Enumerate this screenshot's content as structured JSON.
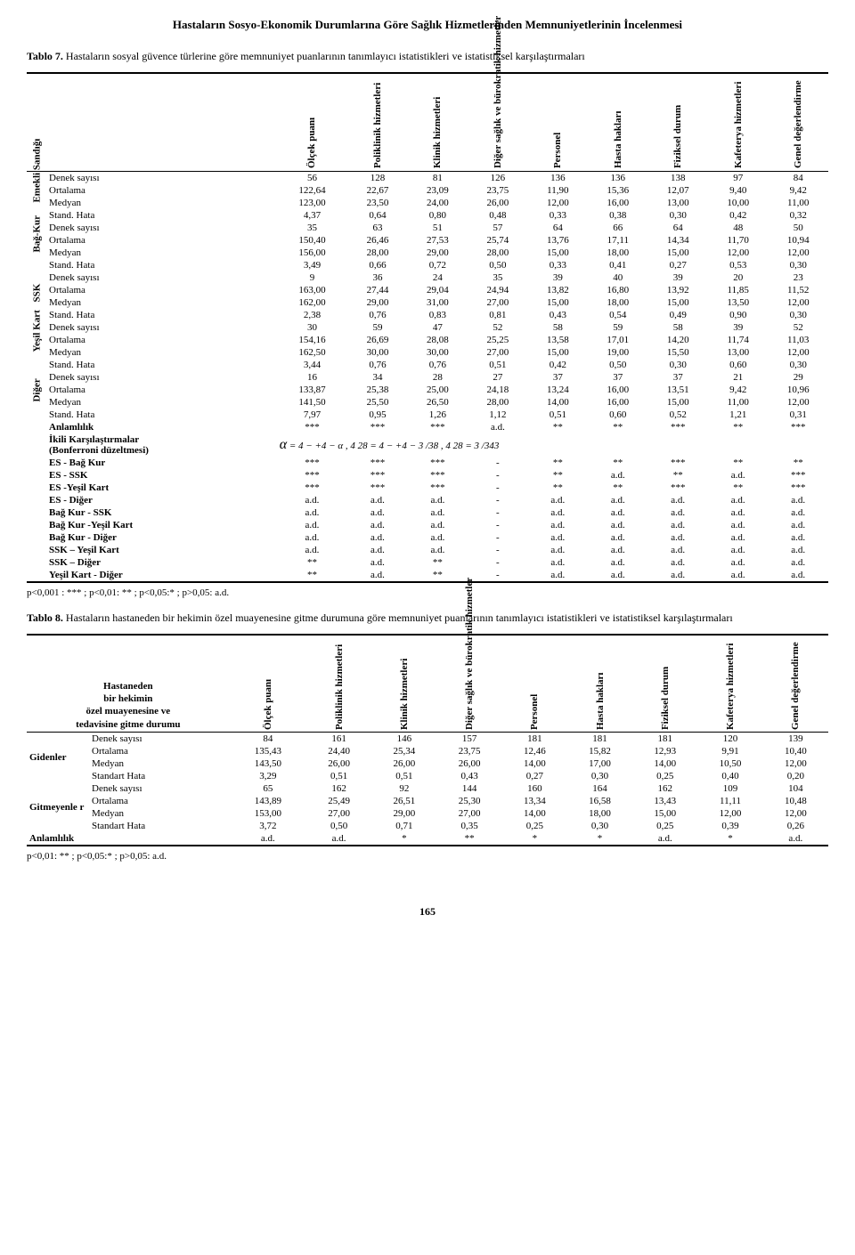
{
  "page_header": "Hastaların Sosyo-Ekonomik Durumlarına Göre Sağlık Hizmetlerinden Memnuniyetlerinin İncelenmesi",
  "ornament": "",
  "table7": {
    "label": "Tablo 7.",
    "caption": "Hastaların sosyal güvence türlerine göre memnuniyet puanlarının tanımlayıcı istatistikleri ve istatistiksel karşılaştırmaları",
    "col_headers": [
      "Ölçek puanı",
      "Poliklinik hizmetleri",
      "Klinik hizmetleri",
      "Diğer sağlık ve bürokratik hizmetler",
      "Personel",
      "Hasta hakları",
      "Fiziksel durum",
      "Kafeterya hizmetleri",
      "Genel değerlendirme"
    ],
    "groups": [
      {
        "name": "Emekli Sandığı",
        "rows": [
          {
            "lbl": "Denek sayısı",
            "v": [
              "56",
              "128",
              "81",
              "126",
              "136",
              "136",
              "138",
              "97",
              "84"
            ]
          },
          {
            "lbl": "Ortalama",
            "v": [
              "122,64",
              "22,67",
              "23,09",
              "23,75",
              "11,90",
              "15,36",
              "12,07",
              "9,40",
              "9,42"
            ]
          },
          {
            "lbl": "Medyan",
            "v": [
              "123,00",
              "23,50",
              "24,00",
              "26,00",
              "12,00",
              "16,00",
              "13,00",
              "10,00",
              "11,00"
            ]
          },
          {
            "lbl": "Stand. Hata",
            "v": [
              "4,37",
              "0,64",
              "0,80",
              "0,48",
              "0,33",
              "0,38",
              "0,30",
              "0,42",
              "0,32"
            ]
          }
        ]
      },
      {
        "name": "Bağ-Kur",
        "rows": [
          {
            "lbl": "Denek sayısı",
            "v": [
              "35",
              "63",
              "51",
              "57",
              "64",
              "66",
              "64",
              "48",
              "50"
            ]
          },
          {
            "lbl": "Ortalama",
            "v": [
              "150,40",
              "26,46",
              "27,53",
              "25,74",
              "13,76",
              "17,11",
              "14,34",
              "11,70",
              "10,94"
            ]
          },
          {
            "lbl": "Medyan",
            "v": [
              "156,00",
              "28,00",
              "29,00",
              "28,00",
              "15,00",
              "18,00",
              "15,00",
              "12,00",
              "12,00"
            ]
          },
          {
            "lbl": "Stand. Hata",
            "v": [
              "3,49",
              "0,66",
              "0,72",
              "0,50",
              "0,33",
              "0,41",
              "0,27",
              "0,53",
              "0,30"
            ]
          }
        ]
      },
      {
        "name": "SSK",
        "rows": [
          {
            "lbl": "Denek sayısı",
            "v": [
              "9",
              "36",
              "24",
              "35",
              "39",
              "40",
              "39",
              "20",
              "23"
            ]
          },
          {
            "lbl": "Ortalama",
            "v": [
              "163,00",
              "27,44",
              "29,04",
              "24,94",
              "13,82",
              "16,80",
              "13,92",
              "11,85",
              "11,52"
            ]
          },
          {
            "lbl": "Medyan",
            "v": [
              "162,00",
              "29,00",
              "31,00",
              "27,00",
              "15,00",
              "18,00",
              "15,00",
              "13,50",
              "12,00"
            ]
          },
          {
            "lbl": "Stand. Hata",
            "v": [
              "2,38",
              "0,76",
              "0,83",
              "0,81",
              "0,43",
              "0,54",
              "0,49",
              "0,90",
              "0,30"
            ]
          }
        ]
      },
      {
        "name": "Yeşil Kart",
        "rows": [
          {
            "lbl": "Denek sayısı",
            "v": [
              "30",
              "59",
              "47",
              "52",
              "58",
              "59",
              "58",
              "39",
              "52"
            ]
          },
          {
            "lbl": "Ortalama",
            "v": [
              "154,16",
              "26,69",
              "28,08",
              "25,25",
              "13,58",
              "17,01",
              "14,20",
              "11,74",
              "11,03"
            ]
          },
          {
            "lbl": "Medyan",
            "v": [
              "162,50",
              "30,00",
              "30,00",
              "27,00",
              "15,00",
              "19,00",
              "15,50",
              "13,00",
              "12,00"
            ]
          },
          {
            "lbl": "Stand. Hata",
            "v": [
              "3,44",
              "0,76",
              "0,76",
              "0,51",
              "0,42",
              "0,50",
              "0,30",
              "0,60",
              "0,30"
            ]
          }
        ]
      },
      {
        "name": "Diğer",
        "rows": [
          {
            "lbl": "Denek sayısı",
            "v": [
              "16",
              "34",
              "28",
              "27",
              "37",
              "37",
              "37",
              "21",
              "29"
            ]
          },
          {
            "lbl": "Ortalama",
            "v": [
              "133,87",
              "25,38",
              "25,00",
              "24,18",
              "13,24",
              "16,00",
              "13,51",
              "9,42",
              "10,96"
            ]
          },
          {
            "lbl": "Medyan",
            "v": [
              "141,50",
              "25,50",
              "26,50",
              "28,00",
              "14,00",
              "16,00",
              "15,00",
              "11,00",
              "12,00"
            ]
          },
          {
            "lbl": "Stand. Hata",
            "v": [
              "7,97",
              "0,95",
              "1,26",
              "1,12",
              "0,51",
              "0,60",
              "0,52",
              "1,21",
              "0,31"
            ]
          }
        ]
      }
    ],
    "anlamlilik": {
      "lbl": "Anlamlılık",
      "v": [
        "***",
        "***",
        "***",
        "a.d.",
        "**",
        "**",
        "***",
        "**",
        "***"
      ]
    },
    "bonf_label_l1": "İkili Karşılaştırmalar",
    "bonf_label_l2": "(Bonferroni düzeltmesi)",
    "formula_text": "α  = 4 − +4 − α ,  4 28  = 4 − +4 − 3 /38 ,  4 28  = 3 /343",
    "pairwise": [
      {
        "lbl": "ES - Bağ Kur",
        "v": [
          "***",
          "***",
          "***",
          "-",
          "**",
          "**",
          "***",
          "**",
          "**"
        ]
      },
      {
        "lbl": "ES - SSK",
        "v": [
          "***",
          "***",
          "***",
          "-",
          "**",
          "a.d.",
          "**",
          "a.d.",
          "***"
        ]
      },
      {
        "lbl": "ES -Yeşil Kart",
        "v": [
          "***",
          "***",
          "***",
          "-",
          "**",
          "**",
          "***",
          "**",
          "***"
        ]
      },
      {
        "lbl": "ES - Diğer",
        "v": [
          "a.d.",
          "a.d.",
          "a.d.",
          "-",
          "a.d.",
          "a.d.",
          "a.d.",
          "a.d.",
          "a.d."
        ]
      },
      {
        "lbl": "Bağ Kur - SSK",
        "v": [
          "a.d.",
          "a.d.",
          "a.d.",
          "-",
          "a.d.",
          "a.d.",
          "a.d.",
          "a.d.",
          "a.d."
        ]
      },
      {
        "lbl": "Bağ Kur -Yeşil Kart",
        "v": [
          "a.d.",
          "a.d.",
          "a.d.",
          "-",
          "a.d.",
          "a.d.",
          "a.d.",
          "a.d.",
          "a.d."
        ]
      },
      {
        "lbl": "Bağ Kur - Diğer",
        "v": [
          "a.d.",
          "a.d.",
          "a.d.",
          "-",
          "a.d.",
          "a.d.",
          "a.d.",
          "a.d.",
          "a.d."
        ]
      },
      {
        "lbl": "SSK – Yeşil Kart",
        "v": [
          "a.d.",
          "a.d.",
          "a.d.",
          "-",
          "a.d.",
          "a.d.",
          "a.d.",
          "a.d.",
          "a.d."
        ]
      },
      {
        "lbl": "SSK – Diğer",
        "v": [
          "**",
          "a.d.",
          "**",
          "-",
          "a.d.",
          "a.d.",
          "a.d.",
          "a.d.",
          "a.d."
        ]
      },
      {
        "lbl": "Yeşil Kart - Diğer",
        "v": [
          "**",
          "a.d.",
          "**",
          "-",
          "a.d.",
          "a.d.",
          "a.d.",
          "a.d.",
          "a.d."
        ]
      }
    ],
    "footnote": "p<0,001 : *** ;  p<0,01: ** ;  p<0,05:* ;  p>0,05: a.d."
  },
  "table8": {
    "label": "Tablo 8.",
    "caption": "Hastaların hastaneden bir hekimin özel muayenesine  gitme durumuna göre memnuniyet puanlarının tanımlayıcı istatistikleri ve istatistiksel karşılaştırmaları",
    "left_header": "Hastaneden\nbir hekimin\nözel muayenesine ve\ntedavisine gitme durumu",
    "col_headers": [
      "Ölçek puanı",
      "Poliklinik hizmetleri",
      "Klinik hizmetleri",
      "Diğer sağlık ve bürokratik hizmetler",
      "Personel",
      "Hasta hakları",
      "Fiziksel durum",
      "Kafeterya hizmetleri",
      "Genel değerlendirme"
    ],
    "groups": [
      {
        "name": "Gidenler",
        "rows": [
          {
            "lbl": "Denek sayısı",
            "v": [
              "84",
              "161",
              "146",
              "157",
              "181",
              "181",
              "181",
              "120",
              "139"
            ]
          },
          {
            "lbl": "Ortalama",
            "v": [
              "135,43",
              "24,40",
              "25,34",
              "23,75",
              "12,46",
              "15,82",
              "12,93",
              "9,91",
              "10,40"
            ]
          },
          {
            "lbl": "Medyan",
            "v": [
              "143,50",
              "26,00",
              "26,00",
              "26,00",
              "14,00",
              "17,00",
              "14,00",
              "10,50",
              "12,00"
            ]
          },
          {
            "lbl": "Standart Hata",
            "v": [
              "3,29",
              "0,51",
              "0,51",
              "0,43",
              "0,27",
              "0,30",
              "0,25",
              "0,40",
              "0,20"
            ]
          }
        ]
      },
      {
        "name": "Gitmeyenle r",
        "rows": [
          {
            "lbl": "Denek sayısı",
            "v": [
              "65",
              "162",
              "92",
              "144",
              "160",
              "164",
              "162",
              "109",
              "104"
            ]
          },
          {
            "lbl": "Ortalama",
            "v": [
              "143,89",
              "25,49",
              "26,51",
              "25,30",
              "13,34",
              "16,58",
              "13,43",
              "11,11",
              "10,48"
            ]
          },
          {
            "lbl": "Medyan",
            "v": [
              "153,00",
              "27,00",
              "29,00",
              "27,00",
              "14,00",
              "18,00",
              "15,00",
              "12,00",
              "12,00"
            ]
          },
          {
            "lbl": "Standart Hata",
            "v": [
              "3,72",
              "0,50",
              "0,71",
              "0,35",
              "0,25",
              "0,30",
              "0,25",
              "0,39",
              "0,26"
            ]
          }
        ]
      }
    ],
    "anlamlilik": {
      "lbl": "Anlamlılık",
      "v": [
        "a.d.",
        "a.d.",
        "*",
        "**",
        "*",
        "*",
        "a.d.",
        "*",
        "a.d."
      ]
    },
    "footnote": "p<0,01: ** ;  p<0,05:* ;  p>0,05: a.d."
  },
  "page_number": "165"
}
